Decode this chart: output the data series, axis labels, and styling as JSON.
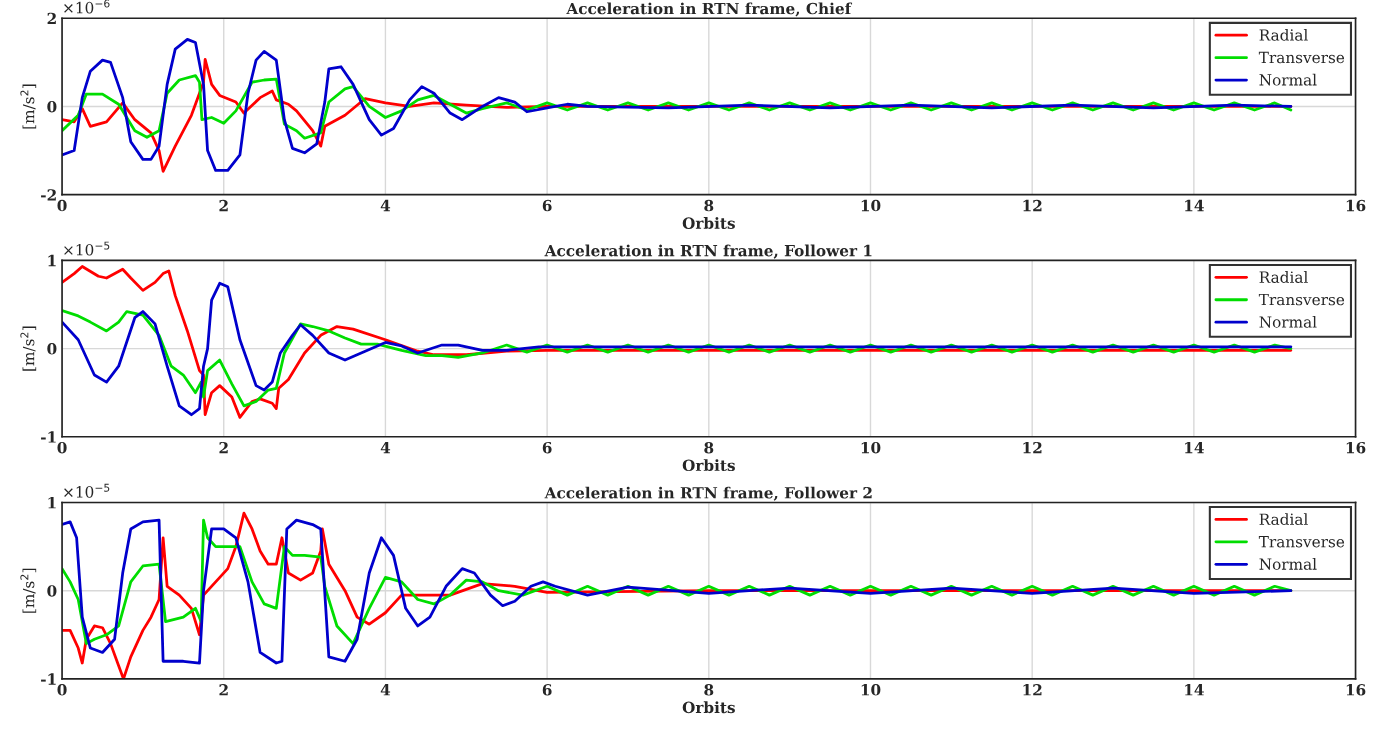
{
  "chart_data": [
    {
      "type": "line",
      "title": "Acceleration in RTN frame, Chief",
      "xlabel": "Orbits",
      "ylabel": "[m/s$^{2}$]",
      "annotations": [
        "×10$^{−6}$"
      ],
      "xlim": [
        0,
        16
      ],
      "xticks": [
        0,
        2,
        4,
        6,
        8,
        10,
        12,
        14,
        16
      ],
      "ylim": [
        -2,
        2
      ],
      "yticks": [
        -2,
        0,
        2
      ],
      "grid": true,
      "legend": "top right",
      "series": [
        {
          "name": "Radial",
          "color": "#ff0000",
          "x": [
            0,
            0.15,
            0.25,
            0.35,
            0.55,
            0.75,
            0.9,
            1.1,
            1.2,
            1.25,
            1.4,
            1.6,
            1.75,
            1.77,
            1.85,
            1.95,
            2.15,
            2.25,
            2.45,
            2.6,
            2.65,
            2.8,
            2.9,
            3.1,
            3.2,
            3.25,
            3.5,
            3.75,
            4.0,
            4.3,
            4.6,
            5.0,
            5.5,
            6.0,
            8.0,
            10.0,
            12.0,
            14.0,
            15.2
          ],
          "values": [
            -0.3,
            -0.35,
            -0.05,
            -0.45,
            -0.35,
            0.08,
            -0.3,
            -0.6,
            -1.0,
            -1.47,
            -0.9,
            -0.2,
            0.55,
            1.07,
            0.5,
            0.25,
            0.1,
            -0.15,
            0.2,
            0.35,
            0.15,
            0.05,
            -0.1,
            -0.55,
            -0.9,
            -0.45,
            -0.2,
            0.18,
            0.08,
            0.0,
            0.08,
            0.03,
            -0.02,
            0.0,
            0.0,
            0.0,
            0.0,
            0.0,
            0.0
          ]
        },
        {
          "name": "Transverse",
          "color": "#00dd00",
          "x": [
            0,
            0.2,
            0.3,
            0.5,
            0.7,
            0.9,
            1.05,
            1.2,
            1.3,
            1.45,
            1.65,
            1.7,
            1.73,
            1.85,
            2.0,
            2.15,
            2.35,
            2.5,
            2.65,
            2.75,
            2.9,
            3.0,
            3.2,
            3.3,
            3.5,
            3.6,
            3.8,
            4.0,
            4.2,
            4.4,
            4.6,
            4.8,
            5.0,
            5.2,
            5.5,
            5.75,
            6,
            6.25,
            6.5,
            6.75,
            7,
            7.25,
            7.5,
            7.75,
            8,
            8.25,
            8.5,
            8.75,
            9,
            9.25,
            9.5,
            9.75,
            10,
            10.25,
            10.5,
            10.75,
            11,
            11.25,
            11.5,
            11.75,
            12,
            12.25,
            12.5,
            12.75,
            13,
            13.25,
            13.5,
            13.75,
            14,
            14.25,
            14.5,
            14.75,
            15,
            15.2
          ],
          "values": [
            -0.55,
            -0.2,
            0.28,
            0.28,
            0.05,
            -0.55,
            -0.7,
            -0.55,
            0.3,
            0.6,
            0.7,
            0.55,
            -0.3,
            -0.25,
            -0.38,
            -0.1,
            0.55,
            0.6,
            0.62,
            -0.4,
            -0.55,
            -0.72,
            -0.6,
            0.1,
            0.4,
            0.45,
            0.0,
            -0.25,
            -0.1,
            0.15,
            0.25,
            0.05,
            -0.15,
            -0.05,
            0.08,
            -0.08,
            0.08,
            -0.08,
            0.08,
            -0.08,
            0.08,
            -0.08,
            0.08,
            -0.08,
            0.08,
            -0.08,
            0.08,
            -0.08,
            0.08,
            -0.08,
            0.08,
            -0.08,
            0.08,
            -0.08,
            0.08,
            -0.08,
            0.08,
            -0.08,
            0.08,
            -0.08,
            0.08,
            -0.08,
            0.08,
            -0.08,
            0.08,
            -0.08,
            0.08,
            -0.08,
            0.08,
            -0.08,
            0.08,
            -0.08,
            0.08,
            -0.08
          ]
        },
        {
          "name": "Normal",
          "color": "#0000cc",
          "x": [
            0,
            0.15,
            0.25,
            0.35,
            0.5,
            0.6,
            0.75,
            0.85,
            1.0,
            1.1,
            1.2,
            1.3,
            1.4,
            1.55,
            1.65,
            1.75,
            1.8,
            1.9,
            2.05,
            2.2,
            2.3,
            2.4,
            2.5,
            2.65,
            2.75,
            2.85,
            3.0,
            3.15,
            3.25,
            3.3,
            3.45,
            3.6,
            3.8,
            3.95,
            4.1,
            4.3,
            4.45,
            4.6,
            4.8,
            4.95,
            5.2,
            5.4,
            5.6,
            5.75,
            6.0,
            6.25,
            6.5,
            7.5,
            8.5,
            9.5,
            10.5,
            11.5,
            12.5,
            13.5,
            14.5,
            15.2
          ],
          "values": [
            -1.1,
            -1.0,
            0.2,
            0.8,
            1.05,
            1.0,
            0.2,
            -0.8,
            -1.2,
            -1.2,
            -0.9,
            0.5,
            1.3,
            1.52,
            1.45,
            0.5,
            -1.0,
            -1.45,
            -1.45,
            -1.1,
            0.3,
            1.05,
            1.25,
            1.05,
            -0.3,
            -0.95,
            -1.05,
            -0.85,
            0.1,
            0.85,
            0.9,
            0.5,
            -0.3,
            -0.65,
            -0.5,
            0.15,
            0.45,
            0.3,
            -0.15,
            -0.3,
            0.0,
            0.2,
            0.1,
            -0.12,
            -0.03,
            0.05,
            0.0,
            -0.03,
            0.03,
            -0.03,
            0.03,
            -0.03,
            0.03,
            -0.03,
            0.03,
            0.0
          ]
        }
      ]
    },
    {
      "type": "line",
      "title": "Acceleration in RTN frame, Follower 1",
      "xlabel": "Orbits",
      "ylabel": "[m/s$^{2}$]",
      "annotations": [
        "×10$^{−5}$"
      ],
      "xlim": [
        0,
        16
      ],
      "xticks": [
        0,
        2,
        4,
        6,
        8,
        10,
        12,
        14,
        16
      ],
      "ylim": [
        -1,
        1
      ],
      "yticks": [
        -1,
        0,
        1
      ],
      "grid": true,
      "legend": "top right",
      "series": [
        {
          "name": "Radial",
          "color": "#ff0000",
          "x": [
            0,
            0.15,
            0.25,
            0.45,
            0.55,
            0.75,
            0.85,
            1.0,
            1.15,
            1.25,
            1.32,
            1.4,
            1.55,
            1.7,
            1.75,
            1.77,
            1.85,
            1.95,
            2.1,
            2.2,
            2.35,
            2.45,
            2.6,
            2.65,
            2.68,
            2.8,
            3.0,
            3.2,
            3.4,
            3.6,
            4.0,
            4.4,
            4.6,
            5.0,
            5.5,
            6.0,
            8.0,
            10.0,
            12.0,
            14.0,
            15.2
          ],
          "values": [
            0.75,
            0.85,
            0.93,
            0.82,
            0.8,
            0.9,
            0.8,
            0.66,
            0.75,
            0.85,
            0.88,
            0.6,
            0.2,
            -0.25,
            -0.3,
            -0.75,
            -0.5,
            -0.42,
            -0.55,
            -0.78,
            -0.6,
            -0.57,
            -0.62,
            -0.68,
            -0.45,
            -0.35,
            -0.05,
            0.15,
            0.25,
            0.22,
            0.1,
            -0.03,
            -0.07,
            -0.07,
            -0.03,
            -0.02,
            -0.02,
            -0.02,
            -0.02,
            -0.02,
            -0.02
          ]
        },
        {
          "name": "Transverse",
          "color": "#00dd00",
          "x": [
            0,
            0.2,
            0.35,
            0.55,
            0.7,
            0.8,
            1.0,
            1.2,
            1.35,
            1.5,
            1.65,
            1.72,
            1.75,
            1.8,
            1.95,
            2.1,
            2.25,
            2.4,
            2.55,
            2.65,
            2.75,
            2.95,
            3.1,
            3.3,
            3.5,
            3.7,
            3.9,
            4.2,
            4.5,
            4.7,
            4.9,
            5.2,
            5.5,
            5.75,
            6,
            6.25,
            6.5,
            6.75,
            7,
            7.25,
            7.5,
            7.75,
            8,
            8.25,
            8.5,
            8.75,
            9,
            9.25,
            9.5,
            9.75,
            10,
            10.25,
            10.5,
            10.75,
            11,
            11.25,
            11.5,
            11.75,
            12,
            12.25,
            12.5,
            12.75,
            13,
            13.25,
            13.5,
            13.75,
            14,
            14.25,
            14.5,
            14.75,
            15,
            15.2
          ],
          "values": [
            0.43,
            0.37,
            0.3,
            0.2,
            0.3,
            0.42,
            0.38,
            0.15,
            -0.2,
            -0.3,
            -0.5,
            -0.38,
            -0.55,
            -0.25,
            -0.13,
            -0.4,
            -0.65,
            -0.6,
            -0.47,
            -0.45,
            -0.05,
            0.28,
            0.25,
            0.2,
            0.12,
            0.05,
            0.05,
            -0.02,
            -0.08,
            -0.08,
            -0.1,
            -0.05,
            0.04,
            -0.04,
            0.04,
            -0.04,
            0.04,
            -0.04,
            0.04,
            -0.04,
            0.04,
            -0.04,
            0.04,
            -0.04,
            0.04,
            -0.04,
            0.04,
            -0.04,
            0.04,
            -0.04,
            0.04,
            -0.04,
            0.04,
            -0.04,
            0.04,
            -0.04,
            0.04,
            -0.04,
            0.04,
            -0.04,
            0.04,
            -0.04,
            0.04,
            -0.04,
            0.04,
            -0.04,
            0.04,
            -0.04,
            0.04,
            -0.04,
            0.04,
            0.0
          ]
        },
        {
          "name": "Normal",
          "color": "#0000cc",
          "x": [
            0,
            0.2,
            0.4,
            0.55,
            0.7,
            0.9,
            1.0,
            1.15,
            1.3,
            1.45,
            1.6,
            1.7,
            1.75,
            1.8,
            1.85,
            1.95,
            2.05,
            2.2,
            2.4,
            2.5,
            2.6,
            2.7,
            2.85,
            2.95,
            3.1,
            3.3,
            3.5,
            3.75,
            4.0,
            4.2,
            4.4,
            4.7,
            4.9,
            5.2,
            5.5,
            5.9,
            6.0,
            8.0,
            10.0,
            12.0,
            14.0,
            15.2
          ],
          "values": [
            0.3,
            0.1,
            -0.3,
            -0.38,
            -0.2,
            0.35,
            0.42,
            0.28,
            -0.2,
            -0.65,
            -0.75,
            -0.68,
            -0.2,
            0.0,
            0.55,
            0.74,
            0.7,
            0.1,
            -0.42,
            -0.47,
            -0.38,
            -0.05,
            0.15,
            0.27,
            0.15,
            -0.05,
            -0.13,
            -0.03,
            0.07,
            0.03,
            -0.05,
            0.04,
            0.04,
            -0.02,
            -0.02,
            0.02,
            0.02,
            0.02,
            0.02,
            0.02,
            0.02,
            0.02
          ]
        }
      ]
    },
    {
      "type": "line",
      "title": "Acceleration in RTN frame, Follower 2",
      "xlabel": "Orbits",
      "ylabel": "[m/s$^{2}$]",
      "annotations": [
        "×10$^{−5}$"
      ],
      "xlim": [
        0,
        16
      ],
      "xticks": [
        0,
        2,
        4,
        6,
        8,
        10,
        12,
        14,
        16
      ],
      "ylim": [
        -1,
        1
      ],
      "yticks": [
        -1,
        0,
        1
      ],
      "grid": true,
      "legend": "top right",
      "series": [
        {
          "name": "Radial",
          "color": "#ff0000",
          "x": [
            0,
            0.1,
            0.2,
            0.25,
            0.3,
            0.4,
            0.5,
            0.6,
            0.7,
            0.76,
            0.85,
            1.0,
            1.1,
            1.2,
            1.25,
            1.3,
            1.45,
            1.6,
            1.7,
            1.75,
            1.9,
            2.05,
            2.15,
            2.25,
            2.35,
            2.45,
            2.55,
            2.65,
            2.72,
            2.8,
            2.95,
            3.1,
            3.2,
            3.22,
            3.3,
            3.5,
            3.65,
            3.8,
            4.0,
            4.2,
            4.5,
            4.8,
            5.2,
            5.6,
            6.0,
            8.0,
            10.0,
            12.0,
            14.0,
            15.2
          ],
          "values": [
            -0.45,
            -0.45,
            -0.65,
            -0.82,
            -0.55,
            -0.4,
            -0.42,
            -0.6,
            -0.85,
            -1.0,
            -0.75,
            -0.45,
            -0.3,
            -0.1,
            0.6,
            0.05,
            -0.05,
            -0.2,
            -0.5,
            -0.05,
            0.1,
            0.25,
            0.5,
            0.88,
            0.7,
            0.45,
            0.3,
            0.3,
            0.6,
            0.2,
            0.12,
            0.2,
            0.45,
            0.7,
            0.3,
            0.0,
            -0.3,
            -0.38,
            -0.25,
            -0.05,
            -0.05,
            -0.05,
            0.08,
            0.05,
            -0.02,
            0.0,
            0.0,
            0.0,
            0.0,
            0.0
          ]
        },
        {
          "name": "Transverse",
          "color": "#00dd00",
          "x": [
            0,
            0.1,
            0.2,
            0.3,
            0.4,
            0.55,
            0.7,
            0.85,
            1.0,
            1.2,
            1.28,
            1.5,
            1.65,
            1.72,
            1.75,
            1.8,
            1.9,
            2.1,
            2.2,
            2.35,
            2.5,
            2.65,
            2.75,
            2.85,
            3.0,
            3.2,
            3.25,
            3.4,
            3.6,
            3.8,
            4.0,
            4.2,
            4.4,
            4.6,
            4.8,
            5.0,
            5.2,
            5.4,
            5.7,
            6,
            6.25,
            6.5,
            6.75,
            7,
            7.25,
            7.5,
            7.75,
            8,
            8.25,
            8.5,
            8.75,
            9,
            9.25,
            9.5,
            9.75,
            10,
            10.25,
            10.5,
            10.75,
            11,
            11.25,
            11.5,
            11.75,
            12,
            12.25,
            12.5,
            12.75,
            13,
            13.25,
            13.5,
            13.75,
            14,
            14.25,
            14.5,
            14.75,
            15,
            15.2
          ],
          "values": [
            0.25,
            0.1,
            -0.1,
            -0.6,
            -0.55,
            -0.5,
            -0.4,
            0.1,
            0.28,
            0.3,
            -0.35,
            -0.3,
            -0.2,
            -0.35,
            0.8,
            0.6,
            0.5,
            0.5,
            0.5,
            0.1,
            -0.15,
            -0.2,
            0.5,
            0.4,
            0.4,
            0.38,
            0.05,
            -0.4,
            -0.6,
            -0.2,
            0.15,
            0.1,
            -0.1,
            -0.15,
            -0.05,
            0.12,
            0.1,
            0.0,
            -0.05,
            0.05,
            -0.05,
            0.05,
            -0.05,
            0.05,
            -0.05,
            0.05,
            -0.05,
            0.05,
            -0.05,
            0.05,
            -0.05,
            0.05,
            -0.05,
            0.05,
            -0.05,
            0.05,
            -0.05,
            0.05,
            -0.05,
            0.05,
            -0.05,
            0.05,
            -0.05,
            0.05,
            -0.05,
            0.05,
            -0.05,
            0.05,
            -0.05,
            0.05,
            -0.05,
            0.05,
            -0.05,
            0.05,
            -0.05,
            0.05,
            0.0
          ]
        },
        {
          "name": "Normal",
          "color": "#0000cc",
          "x": [
            0,
            0.1,
            0.18,
            0.25,
            0.35,
            0.5,
            0.65,
            0.75,
            0.85,
            1.0,
            1.2,
            1.25,
            1.5,
            1.7,
            1.75,
            1.85,
            2.0,
            2.15,
            2.3,
            2.45,
            2.65,
            2.72,
            2.78,
            2.9,
            3.1,
            3.2,
            3.3,
            3.5,
            3.65,
            3.8,
            3.95,
            4.1,
            4.25,
            4.4,
            4.55,
            4.75,
            4.95,
            5.1,
            5.3,
            5.45,
            5.6,
            5.8,
            5.95,
            6.1,
            6.5,
            7.0,
            8.0,
            9.0,
            10.0,
            11.0,
            12.0,
            13.0,
            14.0,
            15.2
          ],
          "values": [
            0.75,
            0.78,
            0.6,
            -0.3,
            -0.65,
            -0.7,
            -0.55,
            0.2,
            0.7,
            0.78,
            0.8,
            -0.8,
            -0.8,
            -0.82,
            0.0,
            0.7,
            0.7,
            0.6,
            0.1,
            -0.7,
            -0.82,
            -0.8,
            0.7,
            0.8,
            0.75,
            0.7,
            -0.75,
            -0.8,
            -0.55,
            0.2,
            0.6,
            0.4,
            -0.2,
            -0.4,
            -0.3,
            0.05,
            0.25,
            0.2,
            -0.05,
            -0.17,
            -0.12,
            0.05,
            0.1,
            0.05,
            -0.05,
            0.04,
            -0.03,
            0.03,
            -0.03,
            0.03,
            -0.03,
            0.03,
            -0.03,
            0.0
          ]
        }
      ]
    }
  ]
}
